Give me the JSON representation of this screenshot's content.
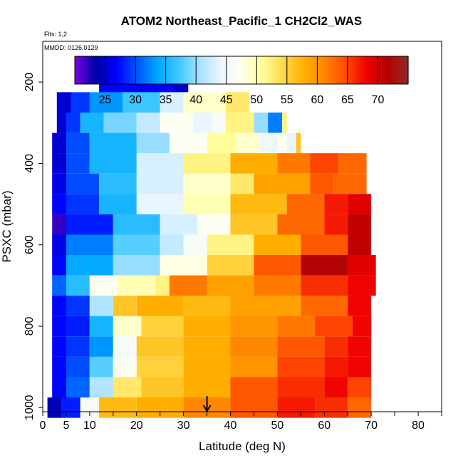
{
  "chart_data": {
    "type": "heatmap",
    "title": "ATOM2 Northeast_Pacific_1 CH2Cl2_WAS",
    "flights_label": "Flts: 1,2",
    "dates_label": "MMDD: 0126,0129",
    "xlabel": "Latitude (deg N)",
    "ylabel": "PSXC (mbar)",
    "xlim": [
      0,
      85
    ],
    "ylim": [
      1010,
      100
    ],
    "x_ticks": [
      0,
      5,
      10,
      20,
      30,
      40,
      50,
      60,
      70,
      80
    ],
    "x_tick_labels": [
      "0",
      "5",
      "10",
      "20",
      "30",
      "40",
      "50",
      "60",
      "70",
      "80"
    ],
    "y_ticks": [
      200,
      400,
      600,
      800,
      1000
    ],
    "y_tick_labels": [
      "200",
      "400",
      "600",
      "800",
      "1000"
    ],
    "colorbar": {
      "min": 20,
      "max": 75,
      "ticks": [
        25,
        30,
        35,
        40,
        45,
        50,
        55,
        60,
        65,
        70
      ],
      "tick_labels": [
        "25",
        "30",
        "35",
        "40",
        "45",
        "50",
        "55",
        "60",
        "65",
        "70"
      ],
      "colors": [
        "#7a00ea",
        "#0000a8",
        "#0000ff",
        "#0055ff",
        "#00a8ff",
        "#3fc8ff",
        "#a9e2ff",
        "#eaf6ff",
        "#fffff0",
        "#ffff9c",
        "#ffd84a",
        "#ffb000",
        "#ff8500",
        "#ff4b00",
        "#ef0000",
        "#b80000",
        "#902a2a"
      ]
    },
    "marker": {
      "x": 35,
      "label": "down-arrow"
    },
    "rows": [
      {
        "p": 200,
        "segments": [
          [
            12,
            28,
            27
          ],
          [
            28,
            31,
            25
          ]
        ]
      },
      {
        "p": 250,
        "segments": [
          [
            3,
            6,
            25
          ],
          [
            6,
            10,
            29
          ],
          [
            10,
            17,
            33
          ],
          [
            17,
            25,
            37
          ],
          [
            25,
            30,
            43
          ],
          [
            30,
            39,
            49
          ],
          [
            39,
            44,
            53
          ]
        ]
      },
      {
        "p": 300,
        "segments": [
          [
            3,
            5,
            25
          ],
          [
            5,
            8,
            29
          ],
          [
            8,
            13,
            35
          ],
          [
            13,
            20,
            39
          ],
          [
            20,
            25,
            42
          ],
          [
            25,
            32,
            47
          ],
          [
            32,
            36,
            44
          ],
          [
            36,
            39,
            46
          ],
          [
            39,
            45,
            52
          ],
          [
            45,
            48,
            40
          ],
          [
            48,
            51,
            32
          ],
          [
            51,
            52,
            52
          ]
        ]
      },
      {
        "p": 350,
        "segments": [
          [
            2,
            5,
            25
          ],
          [
            5,
            10,
            30
          ],
          [
            10,
            20,
            35
          ],
          [
            20,
            27,
            40
          ],
          [
            27,
            35,
            47
          ],
          [
            35,
            41,
            51
          ],
          [
            41,
            46,
            49
          ],
          [
            46,
            50,
            45
          ],
          [
            50,
            52,
            47
          ],
          [
            52,
            54,
            44
          ],
          [
            54,
            55,
            56
          ]
        ]
      },
      {
        "p": 400,
        "segments": [
          [
            2,
            5,
            25
          ],
          [
            5,
            10,
            30
          ],
          [
            10,
            20,
            35
          ],
          [
            20,
            30,
            43
          ],
          [
            30,
            40,
            52
          ],
          [
            40,
            50,
            58
          ],
          [
            50,
            57,
            62
          ],
          [
            57,
            63,
            65
          ],
          [
            63,
            69,
            63
          ]
        ]
      },
      {
        "p": 450,
        "segments": [
          [
            2,
            5,
            26
          ],
          [
            5,
            12,
            30
          ],
          [
            12,
            20,
            36
          ],
          [
            20,
            30,
            43
          ],
          [
            30,
            40,
            49
          ],
          [
            40,
            45,
            53
          ],
          [
            45,
            57,
            59
          ],
          [
            57,
            62,
            64
          ],
          [
            62,
            69,
            63
          ]
        ]
      },
      {
        "p": 500,
        "segments": [
          [
            2,
            5,
            27
          ],
          [
            5,
            12,
            29
          ],
          [
            12,
            20,
            35
          ],
          [
            20,
            30,
            44
          ],
          [
            30,
            40,
            50
          ],
          [
            40,
            52,
            57
          ],
          [
            52,
            60,
            63
          ],
          [
            60,
            65,
            67
          ],
          [
            65,
            70,
            69
          ]
        ]
      },
      {
        "p": 550,
        "segments": [
          [
            2,
            5,
            22
          ],
          [
            5,
            15,
            28
          ],
          [
            15,
            25,
            36
          ],
          [
            25,
            33,
            43
          ],
          [
            33,
            40,
            47
          ],
          [
            40,
            50,
            56
          ],
          [
            50,
            60,
            63
          ],
          [
            60,
            65,
            67
          ],
          [
            65,
            70,
            71
          ]
        ]
      },
      {
        "p": 600,
        "segments": [
          [
            2,
            5,
            26
          ],
          [
            5,
            15,
            32
          ],
          [
            15,
            25,
            38
          ],
          [
            25,
            30,
            42
          ],
          [
            30,
            35,
            46
          ],
          [
            35,
            45,
            52
          ],
          [
            45,
            55,
            58
          ],
          [
            55,
            65,
            64
          ],
          [
            65,
            70,
            71
          ]
        ]
      },
      {
        "p": 650,
        "segments": [
          [
            2,
            5,
            27
          ],
          [
            5,
            15,
            34
          ],
          [
            15,
            25,
            40
          ],
          [
            25,
            35,
            48
          ],
          [
            35,
            45,
            55
          ],
          [
            45,
            55,
            64
          ],
          [
            55,
            65,
            72
          ],
          [
            65,
            71,
            69
          ]
        ]
      },
      {
        "p": 700,
        "segments": [
          [
            2,
            5,
            31
          ],
          [
            5,
            10,
            36
          ],
          [
            10,
            16,
            47
          ],
          [
            16,
            24,
            50
          ],
          [
            24,
            27,
            52
          ],
          [
            27,
            35,
            62
          ],
          [
            35,
            45,
            59
          ],
          [
            45,
            55,
            62
          ],
          [
            55,
            65,
            66
          ],
          [
            65,
            71,
            68
          ]
        ]
      },
      {
        "p": 750,
        "segments": [
          [
            2,
            5,
            27
          ],
          [
            5,
            10,
            29
          ],
          [
            10,
            15,
            41
          ],
          [
            15,
            20,
            56
          ],
          [
            20,
            30,
            58
          ],
          [
            30,
            40,
            57
          ],
          [
            40,
            55,
            59
          ],
          [
            55,
            65,
            63
          ],
          [
            65,
            70,
            68
          ]
        ]
      },
      {
        "p": 800,
        "segments": [
          [
            2,
            5,
            27
          ],
          [
            5,
            10,
            28
          ],
          [
            10,
            15,
            35
          ],
          [
            15,
            21,
            49
          ],
          [
            21,
            30,
            55
          ],
          [
            30,
            40,
            58
          ],
          [
            40,
            50,
            60
          ],
          [
            50,
            58,
            62
          ],
          [
            58,
            66,
            65
          ],
          [
            66,
            70,
            68
          ]
        ]
      },
      {
        "p": 850,
        "segments": [
          [
            2,
            5,
            27
          ],
          [
            5,
            10,
            29
          ],
          [
            10,
            15,
            33
          ],
          [
            15,
            20,
            46
          ],
          [
            20,
            30,
            56
          ],
          [
            30,
            40,
            58
          ],
          [
            40,
            50,
            61
          ],
          [
            50,
            60,
            64
          ],
          [
            60,
            65,
            66
          ],
          [
            65,
            70,
            68
          ]
        ]
      },
      {
        "p": 900,
        "segments": [
          [
            2,
            5,
            27
          ],
          [
            5,
            10,
            30
          ],
          [
            10,
            15,
            38
          ],
          [
            15,
            20,
            47
          ],
          [
            20,
            30,
            55
          ],
          [
            30,
            40,
            58
          ],
          [
            40,
            50,
            60
          ],
          [
            50,
            60,
            65
          ],
          [
            60,
            65,
            67
          ],
          [
            65,
            70,
            68
          ]
        ]
      },
      {
        "p": 950,
        "segments": [
          [
            2,
            5,
            27
          ],
          [
            5,
            10,
            31
          ],
          [
            10,
            15,
            41
          ],
          [
            15,
            21,
            53
          ],
          [
            21,
            30,
            56
          ],
          [
            30,
            40,
            58
          ],
          [
            40,
            50,
            64
          ],
          [
            50,
            60,
            66
          ],
          [
            60,
            65,
            68
          ],
          [
            65,
            70,
            65
          ]
        ]
      },
      {
        "p": 1000,
        "segments": [
          [
            1,
            4,
            24
          ],
          [
            4,
            8,
            28
          ],
          [
            8,
            12,
            46
          ],
          [
            12,
            20,
            57
          ],
          [
            20,
            30,
            58
          ],
          [
            30,
            40,
            61
          ],
          [
            40,
            50,
            64
          ],
          [
            50,
            58,
            67
          ],
          [
            58,
            65,
            66
          ],
          [
            65,
            70,
            63
          ]
        ]
      }
    ]
  }
}
